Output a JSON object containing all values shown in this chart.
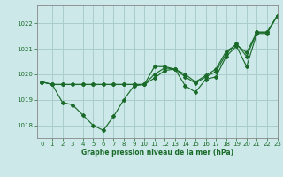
{
  "xlabel": "Graphe pression niveau de la mer (hPa)",
  "background_color": "#cce8e8",
  "grid_color": "#aacccc",
  "line_color": "#1a6b2a",
  "xlim": [
    -0.5,
    23
  ],
  "ylim": [
    1017.5,
    1022.7
  ],
  "yticks": [
    1018,
    1019,
    1020,
    1021,
    1022
  ],
  "xticks": [
    0,
    1,
    2,
    3,
    4,
    5,
    6,
    7,
    8,
    9,
    10,
    11,
    12,
    13,
    14,
    15,
    16,
    17,
    18,
    19,
    20,
    21,
    22,
    23
  ],
  "series": [
    [
      1019.7,
      1019.6,
      1018.9,
      1018.8,
      1018.4,
      1018.0,
      1017.8,
      1018.35,
      1019.0,
      1019.55,
      1019.6,
      1020.3,
      1020.3,
      1020.2,
      1019.55,
      1019.3,
      1019.8,
      1019.9,
      1020.7,
      1021.1,
      1020.3,
      1021.6,
      1021.6,
      1022.3
    ],
    [
      1019.7,
      1019.6,
      1019.6,
      1019.6,
      1019.6,
      1019.6,
      1019.6,
      1019.6,
      1019.6,
      1019.6,
      1019.6,
      1019.85,
      1020.15,
      1020.2,
      1019.9,
      1019.65,
      1019.9,
      1020.1,
      1020.8,
      1021.2,
      1020.7,
      1021.65,
      1021.65,
      1022.3
    ],
    [
      1019.7,
      1019.6,
      1019.6,
      1019.6,
      1019.6,
      1019.6,
      1019.6,
      1019.6,
      1019.6,
      1019.6,
      1019.6,
      1020.0,
      1020.25,
      1020.2,
      1020.0,
      1019.7,
      1019.95,
      1020.2,
      1020.9,
      1021.15,
      1020.85,
      1021.65,
      1021.65,
      1022.3
    ]
  ]
}
